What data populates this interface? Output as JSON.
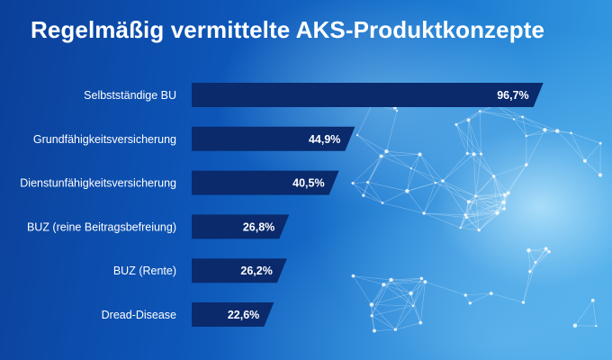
{
  "title": "Regelmäßig vermittelte AKS-Produktkonzepte",
  "colors": {
    "bar": "#0a2a6b",
    "text": "#ffffff"
  },
  "chart_data": {
    "type": "bar",
    "orientation": "horizontal",
    "title": "Regelmäßig vermittelte AKS-Produktkonzepte",
    "categories": [
      "Selbstständige BU",
      "Grundfähigkeitsversicherung",
      "Dienstunfähigkeitsversicherung",
      "BUZ (reine Beitragsbefreiung)",
      "BUZ (Rente)",
      "Dread-Disease"
    ],
    "values": [
      96.7,
      44.9,
      40.5,
      26.8,
      26.2,
      22.6
    ],
    "value_labels": [
      "96,7%",
      "44,9%",
      "40,5%",
      "26,8%",
      "26,2%",
      "22,6%"
    ],
    "xlim": [
      0,
      100
    ],
    "grid": false,
    "legend": "none"
  }
}
